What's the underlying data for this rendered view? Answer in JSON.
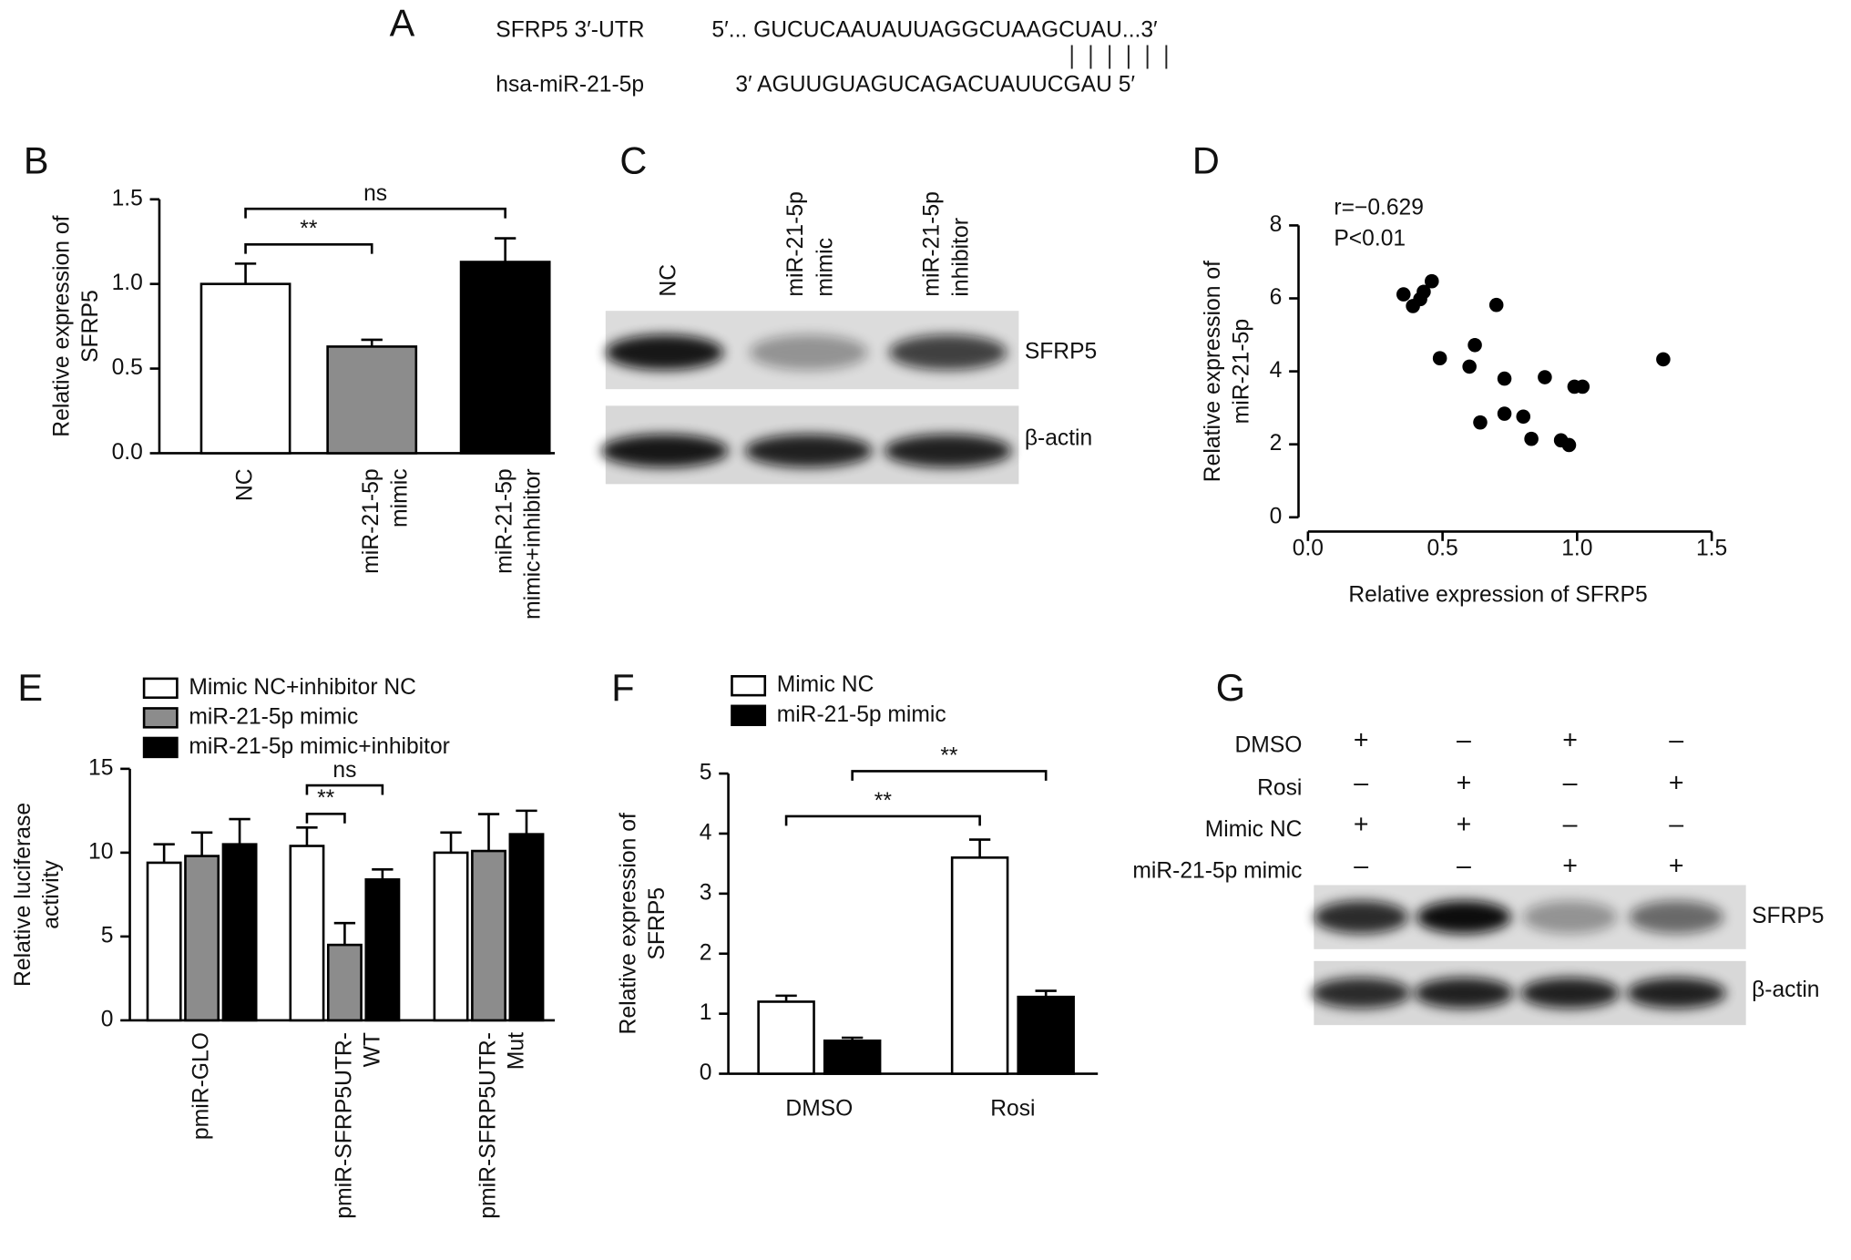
{
  "panel_labels": [
    "A",
    "B",
    "C",
    "D",
    "E",
    "F",
    "G"
  ],
  "sequence": {
    "rows": [
      {
        "label": "SFRP5 3′-UTR",
        "sequence": "5′... GUCUCAAUAUUAGGCUAAGCUAU...3′"
      },
      {
        "label": "hsa-miR-21-5p",
        "sequence": "3′ AGUUGUAGUCAGACUAUUCGAU 5′"
      }
    ]
  },
  "blot_c": {
    "lanes": [
      [
        "NC"
      ],
      [
        "miR-21-5p",
        "mimic"
      ],
      [
        "miR-21-5p",
        "inhibitor"
      ]
    ],
    "bands": [
      "SFRP5",
      "β-actin"
    ]
  },
  "blot_g": {
    "conditions": [
      {
        "label": "DMSO",
        "signs": [
          "+",
          "–",
          "+",
          "–"
        ]
      },
      {
        "label": "Rosi",
        "signs": [
          "–",
          "+",
          "–",
          "+"
        ]
      },
      {
        "label": "Mimic NC",
        "signs": [
          "+",
          "+",
          "–",
          "–"
        ]
      },
      {
        "label": "miR-21-5p mimic",
        "signs": [
          "–",
          "–",
          "+",
          "+"
        ]
      }
    ],
    "bands": [
      "SFRP5",
      "β-actin"
    ]
  },
  "chart_data": [
    {
      "type": "bar",
      "ylabel": [
        "Relative expression of",
        "SFRP5"
      ],
      "categories": [
        [
          "NC"
        ],
        [
          "miR-21-5p",
          "mimic"
        ],
        [
          "miR-21-5p",
          "mimic+inhibitor"
        ]
      ],
      "values": [
        1.0,
        0.63,
        1.13
      ],
      "errors": [
        0.12,
        0.04,
        0.14
      ],
      "colors": [
        "#ffffff",
        "#8c8c8c",
        "#000000"
      ],
      "ylim": [
        0,
        1.5
      ],
      "yticks": [
        {
          "value": 0,
          "label": "0.0"
        },
        {
          "value": 0.5,
          "label": "0.5"
        },
        {
          "value": 1,
          "label": "1.0"
        },
        {
          "value": 1.5,
          "label": "1.5"
        }
      ],
      "annotations": [
        {
          "text": "**",
          "from": 0,
          "to": 1
        },
        {
          "text": "ns",
          "from": 0,
          "to": 2
        }
      ]
    },
    {
      "type": "scatter",
      "xlabel": "Relative expression of SFRP5",
      "ylabel": [
        "Relative expression of",
        "miR-21-5p"
      ],
      "x": [
        0.355,
        0.39,
        0.417,
        0.43,
        0.46,
        0.49,
        0.6,
        0.62,
        0.64,
        0.7,
        0.73,
        0.73,
        0.8,
        0.83,
        0.88,
        0.94,
        0.97,
        0.99,
        1.02,
        1.32
      ],
      "values": [
        6.11,
        5.79,
        5.98,
        6.18,
        6.47,
        4.36,
        4.13,
        4.72,
        2.6,
        5.82,
        3.8,
        2.84,
        2.76,
        2.15,
        3.84,
        2.11,
        1.98,
        3.58,
        3.58,
        4.33
      ],
      "color": "#000000",
      "xlim": [
        0,
        1.5
      ],
      "xticks": [
        {
          "value": 0,
          "label": "0.0"
        },
        {
          "value": 0.5,
          "label": "0.5"
        },
        {
          "value": 1,
          "label": "1.0"
        },
        {
          "value": 1.5,
          "label": "1.5"
        }
      ],
      "ylim": [
        0,
        8
      ],
      "yticks": [
        0,
        2,
        4,
        6,
        8
      ],
      "annotations": [
        "r=−0.629",
        "P<0.01"
      ]
    },
    {
      "type": "grouped_bar",
      "ylabel": [
        "Relative luciferase",
        "activity"
      ],
      "categories": [
        [
          "pmiR-GLO"
        ],
        [
          "pmiR-SFRP5UTR-",
          "WT"
        ],
        [
          "pmiR-SFRP5UTR-",
          "Mut"
        ]
      ],
      "series": [
        {
          "name": "Mimic NC+inhibitor NC",
          "color": "#ffffff",
          "values": [
            9.4,
            10.4,
            10.0
          ],
          "errors": [
            1.1,
            1.1,
            1.2
          ]
        },
        {
          "name": "miR-21-5p mimic",
          "color": "#8c8c8c",
          "values": [
            9.8,
            4.5,
            10.1
          ],
          "errors": [
            1.4,
            1.3,
            2.2
          ]
        },
        {
          "name": "miR-21-5p mimic+inhibitor",
          "color": "#000000",
          "values": [
            10.5,
            8.4,
            11.1
          ],
          "errors": [
            1.5,
            0.6,
            1.4
          ]
        }
      ],
      "ylim": [
        0,
        15
      ],
      "yticks": [
        0,
        5,
        10,
        15
      ],
      "annotations": [
        {
          "text": "**",
          "from": [
            1,
            0
          ],
          "to": [
            1,
            1
          ]
        },
        {
          "text": "ns",
          "from": [
            1,
            0
          ],
          "to": [
            1,
            2
          ]
        }
      ]
    },
    {
      "type": "grouped_bar",
      "ylabel": [
        "Relative expression of",
        "SFRP5"
      ],
      "categories": [
        [
          "DMSO"
        ],
        [
          "Rosi"
        ]
      ],
      "series": [
        {
          "name": "Mimic NC",
          "color": "#ffffff",
          "values": [
            1.2,
            3.6
          ],
          "errors": [
            0.1,
            0.3
          ]
        },
        {
          "name": "miR-21-5p mimic",
          "color": "#000000",
          "values": [
            0.55,
            1.28
          ],
          "errors": [
            0.05,
            0.1
          ]
        }
      ],
      "ylim": [
        0,
        5
      ],
      "yticks": [
        0,
        1,
        2,
        3,
        4,
        5
      ],
      "annotations": [
        {
          "text": "**",
          "from": [
            0,
            0
          ],
          "to": [
            1,
            0
          ]
        },
        {
          "text": "**",
          "from": [
            0,
            1
          ],
          "to": [
            1,
            1
          ]
        }
      ]
    }
  ]
}
